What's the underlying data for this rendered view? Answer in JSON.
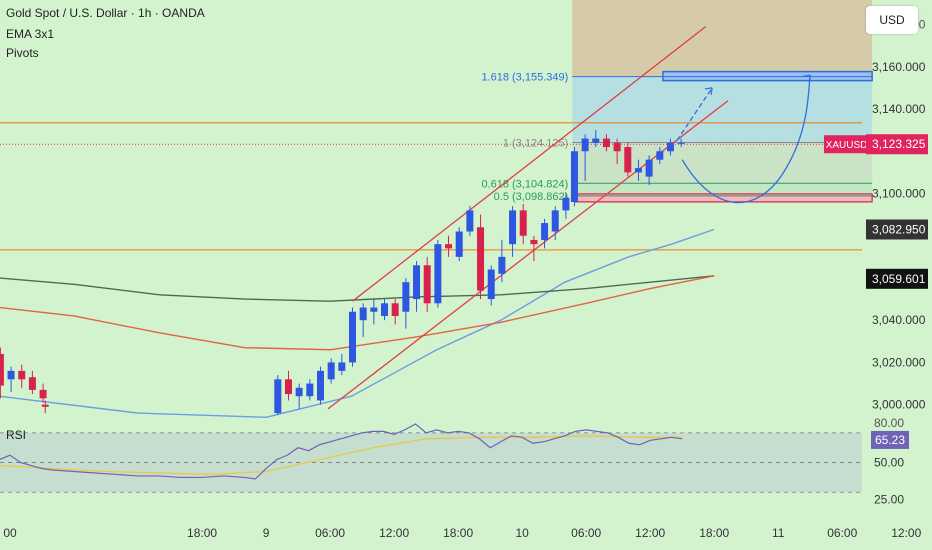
{
  "header": {
    "title": "Gold Spot / U.S. Dollar · 1h · OANDA",
    "indicators": [
      "EMA 3x1",
      "Pivots"
    ]
  },
  "currency_button": "USD",
  "colors": {
    "background": "#d3f3cf",
    "bull_candle": "#2f56e0",
    "bear_candle": "#d8214d",
    "orange_line": "#e8912b",
    "red_channel": "#e23b47",
    "blue_ma": "#6e9ce0",
    "green_ma": "#4a6b52",
    "red_ma": "#e2643e",
    "rsi_line": "#6f63b6",
    "rsi_ma": "#e8c94a"
  },
  "chart_data": {
    "type": "candlestick",
    "title": "Gold Spot / U.S. Dollar · 1h · OANDA",
    "symbol": "XAUUSD",
    "price_axis": {
      "ticks": [
        "3,160.000",
        "3,140.000",
        "3,100.000",
        "3,040.000",
        "3,020.000",
        "3,000.000"
      ],
      "tick_values": [
        3160,
        3140,
        3100,
        3040,
        3020,
        3000
      ],
      "partial_ticks": [
        {
          "label": "3,180.000",
          "value": 3180
        }
      ],
      "range": [
        2988,
        3185
      ]
    },
    "time_axis": {
      "ticks": [
        "18:00",
        "9",
        "06:00",
        "12:00",
        "18:00",
        "10",
        "06:00",
        "12:00",
        "18:00",
        "11",
        "06:00",
        "12:00"
      ],
      "partial_ticks": [
        {
          "label": "00",
          "hour": 6
        }
      ],
      "tick_hours": [
        24,
        30,
        36,
        42,
        48,
        54,
        60,
        66,
        72,
        78,
        84,
        90
      ]
    },
    "price_labels": [
      {
        "name": "XAUUSD",
        "value": "3,123.325",
        "color": "#e0245e"
      },
      {
        "name": "",
        "value": "3,082.950",
        "color": "#333333"
      },
      {
        "name": "",
        "value": "3,059.601",
        "color": "#111111"
      }
    ],
    "fibonacci": [
      {
        "label": "1.618 (3,155.349)",
        "level": 3155.349,
        "color": "#2f6ee0"
      },
      {
        "label": "1 (3,124.125)",
        "level": 3124.125,
        "color": "#888888"
      },
      {
        "label": "0.618 (3,104.824)",
        "level": 3104.824,
        "color": "#2a9c5a"
      },
      {
        "label": "0.5 (3,098.862)",
        "level": 3098.862,
        "color": "#2a9c5a"
      }
    ],
    "horizontal_levels": [
      3133.5,
      3073.3
    ],
    "current_price": 3123.325,
    "candles": [
      {
        "t": 5.1,
        "o": 3024,
        "h": 3027,
        "l": 3003,
        "c": 3009
      },
      {
        "t": 6.1,
        "o": 3012,
        "h": 3018,
        "l": 3006,
        "c": 3016
      },
      {
        "t": 7.1,
        "o": 3016,
        "h": 3019,
        "l": 3008,
        "c": 3012
      },
      {
        "t": 8.1,
        "o": 3013,
        "h": 3016,
        "l": 3005,
        "c": 3007
      },
      {
        "t": 9.1,
        "o": 3007,
        "h": 3010,
        "l": 3001,
        "c": 3003
      },
      {
        "t": 9.3,
        "o": 3000,
        "h": 3002,
        "l": 2996,
        "c": 2999
      },
      {
        "t": 31.1,
        "o": 2996,
        "h": 3014,
        "l": 2995,
        "c": 3012
      },
      {
        "t": 32.1,
        "o": 3012,
        "h": 3016,
        "l": 3002,
        "c": 3005
      },
      {
        "t": 33.1,
        "o": 3004,
        "h": 3010,
        "l": 2998,
        "c": 3008
      },
      {
        "t": 34.1,
        "o": 3004,
        "h": 3012,
        "l": 3002,
        "c": 3010
      },
      {
        "t": 35.1,
        "o": 3002,
        "h": 3018,
        "l": 3000,
        "c": 3016
      },
      {
        "t": 36.1,
        "o": 3012,
        "h": 3022,
        "l": 3010,
        "c": 3020
      },
      {
        "t": 37.1,
        "o": 3016,
        "h": 3024,
        "l": 3014,
        "c": 3020
      },
      {
        "t": 38.1,
        "o": 3020,
        "h": 3046,
        "l": 3018,
        "c": 3044
      },
      {
        "t": 39.1,
        "o": 3040,
        "h": 3048,
        "l": 3032,
        "c": 3046
      },
      {
        "t": 40.1,
        "o": 3044,
        "h": 3050,
        "l": 3038,
        "c": 3046
      },
      {
        "t": 41.1,
        "o": 3042,
        "h": 3050,
        "l": 3040,
        "c": 3048
      },
      {
        "t": 42.1,
        "o": 3048,
        "h": 3050,
        "l": 3038,
        "c": 3042
      },
      {
        "t": 43.1,
        "o": 3044,
        "h": 3060,
        "l": 3036,
        "c": 3058
      },
      {
        "t": 44.1,
        "o": 3050,
        "h": 3068,
        "l": 3044,
        "c": 3066
      },
      {
        "t": 45.1,
        "o": 3066,
        "h": 3070,
        "l": 3044,
        "c": 3048
      },
      {
        "t": 46.1,
        "o": 3048,
        "h": 3078,
        "l": 3046,
        "c": 3076
      },
      {
        "t": 47.1,
        "o": 3076,
        "h": 3080,
        "l": 3070,
        "c": 3074
      },
      {
        "t": 48.1,
        "o": 3070,
        "h": 3084,
        "l": 3068,
        "c": 3082
      },
      {
        "t": 49.1,
        "o": 3082,
        "h": 3094,
        "l": 3080,
        "c": 3092
      },
      {
        "t": 50.1,
        "o": 3084,
        "h": 3090,
        "l": 3050,
        "c": 3054
      },
      {
        "t": 51.1,
        "o": 3050,
        "h": 3066,
        "l": 3047,
        "c": 3064
      },
      {
        "t": 52.1,
        "o": 3062,
        "h": 3078,
        "l": 3058,
        "c": 3070
      },
      {
        "t": 53.1,
        "o": 3076,
        "h": 3094,
        "l": 3070,
        "c": 3092
      },
      {
        "t": 54.1,
        "o": 3092,
        "h": 3095,
        "l": 3076,
        "c": 3080
      },
      {
        "t": 55.1,
        "o": 3078,
        "h": 3080,
        "l": 3068,
        "c": 3076
      },
      {
        "t": 56.1,
        "o": 3078,
        "h": 3088,
        "l": 3074,
        "c": 3086
      },
      {
        "t": 57.1,
        "o": 3082,
        "h": 3094,
        "l": 3078,
        "c": 3092
      },
      {
        "t": 58.1,
        "o": 3092,
        "h": 3100,
        "l": 3088,
        "c": 3098
      },
      {
        "t": 58.9,
        "o": 3096,
        "h": 3122,
        "l": 3094,
        "c": 3120
      },
      {
        "t": 59.9,
        "o": 3120,
        "h": 3128,
        "l": 3106,
        "c": 3126
      },
      {
        "t": 60.9,
        "o": 3124,
        "h": 3130,
        "l": 3122,
        "c": 3126
      },
      {
        "t": 61.9,
        "o": 3126,
        "h": 3128,
        "l": 3120,
        "c": 3122
      },
      {
        "t": 62.9,
        "o": 3124,
        "h": 3126,
        "l": 3114,
        "c": 3120
      },
      {
        "t": 63.9,
        "o": 3122,
        "h": 3124,
        "l": 3108,
        "c": 3110
      },
      {
        "t": 64.9,
        "o": 3110,
        "h": 3116,
        "l": 3106,
        "c": 3112
      },
      {
        "t": 65.9,
        "o": 3108,
        "h": 3118,
        "l": 3104,
        "c": 3116
      },
      {
        "t": 66.9,
        "o": 3116,
        "h": 3122,
        "l": 3114,
        "c": 3120
      },
      {
        "t": 67.9,
        "o": 3120,
        "h": 3126,
        "l": 3118,
        "c": 3124
      },
      {
        "t": 68.9,
        "o": 3124,
        "h": 3126,
        "l": 3122,
        "c": 3124
      }
    ],
    "series": [
      {
        "name": "",
        "kind": "ma",
        "color": "#6e9ce0",
        "points": [
          [
            5,
            3004
          ],
          [
            18,
            2996
          ],
          [
            30,
            2994
          ],
          [
            38,
            3004
          ],
          [
            46,
            3026
          ],
          [
            52,
            3040
          ],
          [
            58,
            3058
          ],
          [
            64,
            3070
          ],
          [
            68,
            3076
          ],
          [
            72,
            3083
          ]
        ]
      },
      {
        "name": "",
        "kind": "ma",
        "color": "#4a6b52",
        "points": [
          [
            5,
            3060
          ],
          [
            12,
            3057
          ],
          [
            20,
            3052
          ],
          [
            28,
            3050
          ],
          [
            36,
            3049
          ],
          [
            44,
            3051
          ],
          [
            52,
            3052
          ],
          [
            60,
            3055
          ],
          [
            66,
            3058
          ],
          [
            72,
            3061
          ]
        ]
      },
      {
        "name": "",
        "kind": "ma",
        "color": "#e2643e",
        "points": [
          [
            5,
            3046
          ],
          [
            12,
            3042
          ],
          [
            20,
            3034
          ],
          [
            28,
            3027
          ],
          [
            36,
            3026
          ],
          [
            44,
            3032
          ],
          [
            52,
            3039
          ],
          [
            60,
            3048
          ],
          [
            66,
            3055
          ],
          [
            72,
            3061
          ]
        ]
      }
    ],
    "rsi": {
      "label": "RSI",
      "value": "65.23",
      "axis_ticks": [
        "50.00",
        "25.00"
      ],
      "axis_values": [
        50,
        25
      ],
      "partial_ticks": [
        {
          "label": "80.00",
          "value": 80
        }
      ],
      "bands": [
        70,
        30
      ],
      "range": [
        10,
        80
      ],
      "line": [
        [
          5,
          52
        ],
        [
          6,
          55
        ],
        [
          7,
          50
        ],
        [
          8,
          48
        ],
        [
          9,
          46
        ],
        [
          10,
          45
        ],
        [
          12,
          44
        ],
        [
          14,
          43
        ],
        [
          16,
          42
        ],
        [
          18,
          41
        ],
        [
          20,
          41
        ],
        [
          22,
          40
        ],
        [
          24,
          40
        ],
        [
          26,
          41
        ],
        [
          28,
          40
        ],
        [
          29,
          39
        ],
        [
          30,
          46
        ],
        [
          31,
          52
        ],
        [
          32,
          55
        ],
        [
          33,
          60
        ],
        [
          34,
          58
        ],
        [
          35,
          62
        ],
        [
          36,
          64
        ],
        [
          37,
          66
        ],
        [
          38,
          68
        ],
        [
          39,
          70
        ],
        [
          40,
          71
        ],
        [
          41,
          71
        ],
        [
          42,
          69
        ],
        [
          43,
          72
        ],
        [
          44,
          76
        ],
        [
          45,
          70
        ],
        [
          46,
          72
        ],
        [
          47,
          70
        ],
        [
          48,
          71
        ],
        [
          49,
          70
        ],
        [
          50,
          66
        ],
        [
          51,
          60
        ],
        [
          52,
          64
        ],
        [
          53,
          68
        ],
        [
          54,
          67
        ],
        [
          55,
          63
        ],
        [
          56,
          64
        ],
        [
          57,
          66
        ],
        [
          58,
          68
        ],
        [
          59,
          71
        ],
        [
          60,
          72
        ],
        [
          61,
          71
        ],
        [
          62,
          70
        ],
        [
          63,
          67
        ],
        [
          64,
          63
        ],
        [
          65,
          62
        ],
        [
          66,
          65
        ],
        [
          67,
          66
        ],
        [
          68,
          67
        ],
        [
          69,
          66
        ]
      ],
      "ma": [
        [
          5,
          48
        ],
        [
          10,
          46
        ],
        [
          15,
          44
        ],
        [
          20,
          43
        ],
        [
          25,
          42
        ],
        [
          30,
          44
        ],
        [
          35,
          52
        ],
        [
          40,
          60
        ],
        [
          45,
          66
        ],
        [
          50,
          67
        ],
        [
          55,
          67
        ],
        [
          60,
          68
        ],
        [
          65,
          67
        ],
        [
          69,
          67
        ]
      ]
    }
  }
}
